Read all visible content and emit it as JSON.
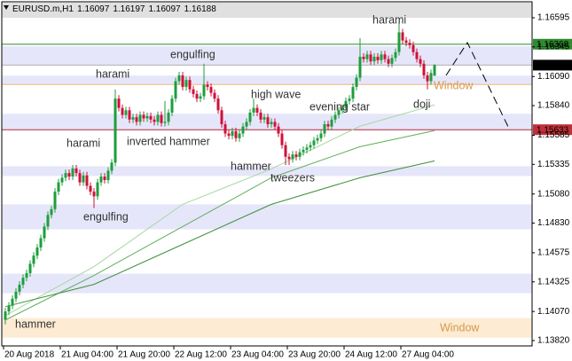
{
  "chart_data": {
    "type": "candlestick",
    "header": {
      "symbol": "EURUSD.m,H1",
      "ohlc": [
        1.16097,
        1.16197,
        1.16097,
        1.16188
      ]
    },
    "ylim": [
      1.13774,
      1.16725
    ],
    "yticks": [
      1.16595,
      1.16345,
      {
        "value": 1.1609,
        "label": "1.16090"
      },
      {
        "value": 1.1584,
        "label": "1.15840"
      },
      1.15585,
      1.15335,
      {
        "value": 1.1508,
        "label": "1.15080"
      },
      {
        "value": 1.1483,
        "label": "1.14830"
      },
      1.14575,
      1.14325,
      {
        "value": 1.1407,
        "label": "1.14070"
      },
      {
        "value": 1.1382,
        "label": "1.13820"
      }
    ],
    "categories": [
      "20 Aug 2018",
      null,
      null,
      null,
      null,
      null,
      null,
      null,
      null,
      null,
      null,
      null,
      null,
      null,
      null,
      null,
      "21 Aug 04:00",
      null,
      null,
      null,
      null,
      null,
      null,
      null,
      null,
      null,
      null,
      null,
      null,
      null,
      null,
      null,
      "21 Aug 20:00",
      null,
      null,
      null,
      null,
      null,
      null,
      null,
      null,
      null,
      null,
      null,
      null,
      null,
      null,
      null,
      "22 Aug 12:00",
      null,
      null,
      null,
      null,
      null,
      null,
      null,
      null,
      null,
      null,
      null,
      null,
      null,
      null,
      null,
      "23 Aug 04:00",
      null,
      null,
      null,
      null,
      null,
      null,
      null,
      null,
      null,
      null,
      null,
      null,
      null,
      null,
      null,
      "23 Aug 20:00",
      null,
      null,
      null,
      null,
      null,
      null,
      null,
      null,
      null,
      null,
      null,
      null,
      null,
      null,
      null,
      "24 Aug 12:00",
      null,
      null,
      null,
      null,
      null,
      null,
      null,
      null,
      null,
      null,
      null,
      null,
      null,
      null,
      null,
      "27 Aug 04:00",
      null,
      null,
      null,
      null,
      null,
      null,
      null,
      null,
      null
    ],
    "up_color": "#1e9e3c",
    "down_color": "#d0103a",
    "open": [
      1.14,
      1.1407,
      1.1412,
      1.1418,
      1.1424,
      1.143,
      1.1436,
      1.144,
      1.1448,
      1.1455,
      1.1462,
      1.147,
      1.148,
      1.149,
      1.1495,
      1.151,
      1.1518,
      1.1522,
      1.1526,
      1.1523,
      1.153,
      1.1526,
      1.1518,
      1.1524,
      1.1515,
      1.151,
      1.1506,
      1.1518,
      1.1523,
      1.152,
      1.1528,
      1.1535,
      1.159,
      1.1582,
      1.1576,
      1.158,
      1.1572,
      1.1574,
      1.157,
      1.1576,
      1.1573,
      1.1575,
      1.1572,
      1.157,
      1.1576,
      1.1569,
      1.157,
      1.1578,
      1.159,
      1.1605,
      1.161,
      1.16,
      1.1606,
      1.1598,
      1.1594,
      1.159,
      1.1592,
      1.1602,
      1.16,
      1.1595,
      1.159,
      1.158,
      1.1568,
      1.156,
      1.1558,
      1.1562,
      1.1556,
      1.156,
      1.1566,
      1.157,
      1.1578,
      1.1582,
      1.1578,
      1.1572,
      1.1574,
      1.1568,
      1.157,
      1.1566,
      1.156,
      1.155,
      1.154,
      1.1538,
      1.1542,
      1.154,
      1.1544,
      1.1546,
      1.1548,
      1.155,
      1.1554,
      1.1556,
      1.156,
      1.1568,
      1.1566,
      1.1572,
      1.1576,
      1.158,
      1.1582,
      1.1588,
      1.159,
      1.16,
      1.1608,
      1.1626,
      1.1624,
      1.1628,
      1.1622,
      1.1626,
      1.1623,
      1.1628,
      1.1624,
      1.162,
      1.1625,
      1.163,
      1.1647,
      1.164,
      1.1638,
      1.1636,
      1.163,
      1.1624,
      1.162,
      1.161,
      1.1605,
      1.16097
    ],
    "high": [
      1.141,
      1.1415,
      1.1421,
      1.1427,
      1.1433,
      1.1439,
      1.1443,
      1.1451,
      1.1458,
      1.1465,
      1.1473,
      1.1483,
      1.1493,
      1.1498,
      1.1513,
      1.1521,
      1.1525,
      1.1529,
      1.1529,
      1.1533,
      1.1533,
      1.1529,
      1.1527,
      1.1527,
      1.1518,
      1.1513,
      1.1521,
      1.1526,
      1.1526,
      1.1531,
      1.1538,
      1.1598,
      1.1593,
      1.1585,
      1.1583,
      1.1583,
      1.1577,
      1.1577,
      1.1579,
      1.1579,
      1.1578,
      1.1578,
      1.1575,
      1.1579,
      1.1579,
      1.1588,
      1.1581,
      1.1593,
      1.1608,
      1.1613,
      1.1613,
      1.1609,
      1.1609,
      1.1601,
      1.1597,
      1.1595,
      1.162,
      1.1605,
      1.1603,
      1.1598,
      1.1593,
      1.1583,
      1.1571,
      1.1563,
      1.1565,
      1.1565,
      1.1563,
      1.1569,
      1.1573,
      1.1581,
      1.159,
      1.1585,
      1.1581,
      1.1577,
      1.1577,
      1.1573,
      1.1573,
      1.1569,
      1.1563,
      1.1553,
      1.1543,
      1.1545,
      1.1545,
      1.1547,
      1.1549,
      1.1551,
      1.1553,
      1.1557,
      1.1559,
      1.1563,
      1.1571,
      1.1571,
      1.1575,
      1.1579,
      1.1583,
      1.1585,
      1.1591,
      1.1593,
      1.1603,
      1.1611,
      1.1642,
      1.1629,
      1.1631,
      1.1631,
      1.1629,
      1.1629,
      1.1631,
      1.1631,
      1.1627,
      1.1628,
      1.1633,
      1.1656,
      1.165,
      1.1643,
      1.1641,
      1.1639,
      1.1633,
      1.1627,
      1.1623,
      1.1613,
      1.1615,
      1.16197
    ],
    "low": [
      1.1396,
      1.1404,
      1.1409,
      1.1415,
      1.1421,
      1.1427,
      1.1433,
      1.1437,
      1.1445,
      1.1452,
      1.1459,
      1.1467,
      1.1477,
      1.1487,
      1.1492,
      1.1507,
      1.1515,
      1.1519,
      1.152,
      1.152,
      1.1523,
      1.1515,
      1.1515,
      1.1512,
      1.1507,
      1.1496,
      1.1503,
      1.1515,
      1.1517,
      1.1517,
      1.1525,
      1.1532,
      1.1579,
      1.1573,
      1.1573,
      1.1569,
      1.1569,
      1.1567,
      1.1567,
      1.157,
      1.157,
      1.1569,
      1.1567,
      1.1567,
      1.1566,
      1.1566,
      1.1567,
      1.1575,
      1.1587,
      1.1602,
      1.1597,
      1.1597,
      1.1595,
      1.1591,
      1.1587,
      1.1587,
      1.1589,
      1.1597,
      1.1592,
      1.1587,
      1.1577,
      1.1565,
      1.1557,
      1.1555,
      1.1555,
      1.1553,
      1.1553,
      1.1557,
      1.1563,
      1.1567,
      1.1575,
      1.1575,
      1.1569,
      1.1569,
      1.1565,
      1.1565,
      1.1563,
      1.1557,
      1.1547,
      1.1533,
      1.1533,
      1.1535,
      1.1537,
      1.1537,
      1.1541,
      1.1543,
      1.1545,
      1.1547,
      1.1551,
      1.1553,
      1.1557,
      1.1563,
      1.1563,
      1.1569,
      1.1573,
      1.1577,
      1.1579,
      1.1585,
      1.1587,
      1.1597,
      1.1605,
      1.1621,
      1.1621,
      1.1619,
      1.1619,
      1.162,
      1.162,
      1.1621,
      1.1617,
      1.1617,
      1.1622,
      1.1627,
      1.1637,
      1.1635,
      1.1633,
      1.1627,
      1.1621,
      1.1617,
      1.1607,
      1.1598,
      1.1602,
      1.16097
    ],
    "close": [
      1.1407,
      1.1412,
      1.1418,
      1.1424,
      1.143,
      1.1436,
      1.144,
      1.1448,
      1.1455,
      1.1462,
      1.147,
      1.148,
      1.149,
      1.1495,
      1.151,
      1.1518,
      1.1522,
      1.1526,
      1.1523,
      1.153,
      1.1526,
      1.1518,
      1.1524,
      1.1515,
      1.151,
      1.1506,
      1.1518,
      1.1523,
      1.152,
      1.1528,
      1.1535,
      1.159,
      1.1582,
      1.1576,
      1.158,
      1.1572,
      1.1574,
      1.157,
      1.1576,
      1.1573,
      1.1575,
      1.1572,
      1.157,
      1.1576,
      1.1569,
      1.157,
      1.1578,
      1.159,
      1.1605,
      1.161,
      1.16,
      1.1606,
      1.1598,
      1.1594,
      1.159,
      1.1592,
      1.1602,
      1.16,
      1.1595,
      1.159,
      1.158,
      1.1568,
      1.156,
      1.1558,
      1.1562,
      1.1556,
      1.156,
      1.1566,
      1.157,
      1.1578,
      1.1582,
      1.1578,
      1.1572,
      1.1574,
      1.1568,
      1.157,
      1.1566,
      1.156,
      1.155,
      1.154,
      1.1538,
      1.1542,
      1.154,
      1.1544,
      1.1546,
      1.1548,
      1.155,
      1.1554,
      1.1556,
      1.156,
      1.1568,
      1.1566,
      1.1572,
      1.1576,
      1.158,
      1.1582,
      1.1588,
      1.159,
      1.16,
      1.1608,
      1.1626,
      1.1624,
      1.1628,
      1.1622,
      1.1626,
      1.1623,
      1.1628,
      1.1624,
      1.162,
      1.1625,
      1.163,
      1.1647,
      1.164,
      1.1638,
      1.1636,
      1.163,
      1.1624,
      1.162,
      1.161,
      1.1605,
      1.1612,
      1.16188
    ],
    "moving_averages": [
      {
        "color": "#a6d8a0",
        "x": [
          0,
          25,
          50,
          75,
          100,
          121
        ],
        "values": [
          1.14035,
          1.14456,
          1.14991,
          1.15296,
          1.15663,
          1.15846
        ]
      },
      {
        "color": "#5fae5a",
        "x": [
          0,
          25,
          50,
          75,
          100,
          121
        ],
        "values": [
          1.13997,
          1.1438,
          1.148,
          1.1522,
          1.15487,
          1.15625
        ]
      },
      {
        "color": "#3d8f3a",
        "x": [
          0,
          25,
          50,
          75,
          100,
          121
        ],
        "values": [
          1.14112,
          1.14303,
          1.14647,
          1.14991,
          1.1522,
          1.15365
        ]
      }
    ],
    "zones": [
      {
        "range": [
          1.16595,
          1.16725
        ],
        "color": "#e0e0e0"
      },
      {
        "range": [
          1.1619,
          1.1635
        ],
        "color": "#e6e6fa"
      },
      {
        "range": [
          1.16022,
          1.16098
        ],
        "color": "#e6e6fa"
      },
      {
        "range": [
          1.15625,
          1.1577
        ],
        "color": "#e6e6fa"
      },
      {
        "range": [
          1.15235,
          1.15319
        ],
        "color": "#e6e6fa"
      },
      {
        "range": [
          1.14777,
          1.14991
        ],
        "color": "#e6e6fa"
      },
      {
        "range": [
          1.14227,
          1.14395
        ],
        "color": "#e6e6fa"
      },
      {
        "range": [
          1.13845,
          1.14013
        ],
        "color": "#fdebd3"
      }
    ],
    "levels": [
      {
        "value": 1.16368,
        "color": "#2e8b2e",
        "labeled": true
      },
      {
        "value": 1.16188,
        "color": "#b0b0b0",
        "labeled": true
      },
      {
        "value": 1.16022,
        "color": "#f0b878",
        "labeled": false
      },
      {
        "value": 1.15633,
        "color": "#c0303a",
        "labeled": true
      }
    ],
    "annotations": [
      {
        "text": "harami",
        "color": "#333333"
      },
      {
        "text": "engulfing",
        "color": "#333333"
      },
      {
        "text": "harami",
        "color": "#333333"
      },
      {
        "text": "inverted hammer",
        "color": "#333333"
      },
      {
        "text": "high wave",
        "color": "#333333"
      },
      {
        "text": "evening star",
        "color": "#333333"
      },
      {
        "text": "harami",
        "color": "#333333"
      },
      {
        "text": "doji",
        "color": "#333333"
      },
      {
        "text": "Window",
        "color": "#d49a4c"
      },
      {
        "text": "hammer",
        "color": "#333333"
      },
      {
        "text": "tweezers",
        "color": "#333333"
      },
      {
        "text": "engulfing",
        "color": "#333333"
      },
      {
        "text": "hammer",
        "color": "#333333"
      },
      {
        "text": "Window",
        "color": "#d49a4c"
      }
    ]
  }
}
